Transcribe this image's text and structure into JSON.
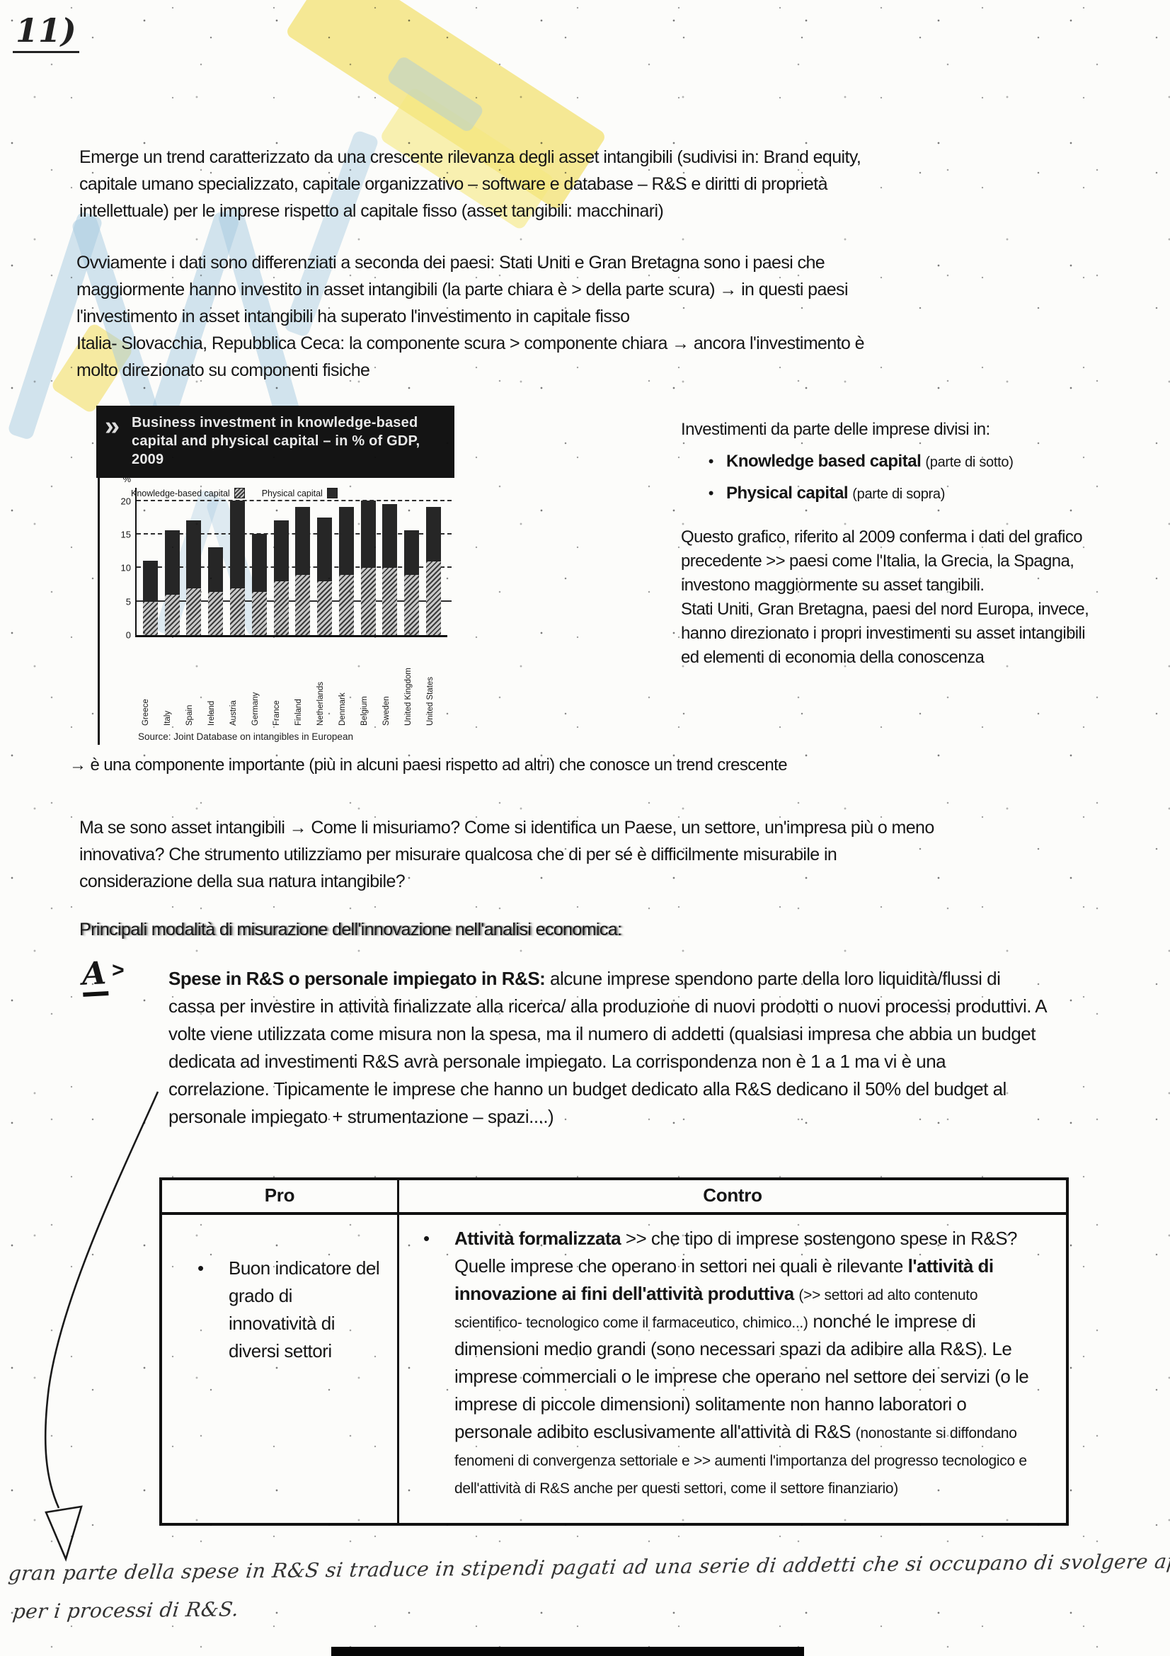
{
  "colors": {
    "watermark_blue": "#a6c9e0",
    "watermark_yellow": "#f3e172",
    "banner_bg": "#141414",
    "ink": "#161616"
  },
  "page": {
    "handwritten_page_number": "11)",
    "paragraphs": {
      "p1": "Emerge un trend caratterizzato da una crescente rilevanza degli asset intangibili (sudivisi in: Brand equity, capitale umano specializzato, capitale organizzativo – software e database – R&S e diritti di proprietà intellettuale) per le imprese rispetto al capitale fisso (asset tangibili: macchinari)",
      "p2a": "Ovviamente i dati sono differenziati a seconda dei paesi: Stati Uniti e Gran Bretagna sono i paesi che maggiormente hanno investito in asset intangibili (la parte chiara è > della parte scura) → in questi paesi l'investimento in asset intangibili ha superato l'investimento in capitale fisso",
      "p2b": "Italia- Slovacchia, Repubblica Ceca: la componente scura > componente chiara → ancora l'investimento è molto direzionato su componenti fisiche",
      "arrow_note": "→ è una componente importante (più in alcuni paesi rispetto ad altri) che conosce un trend crescente",
      "question": "Ma se sono asset intangibili → Come li misuriamo? Come si identifica un Paese, un settore, un'impresa più o meno innovativa? Che strumento utilizziamo per misurare qualcosa che di per sé è difficilmente misurabile in considerazione della sua natura intangibile?",
      "section_heading": "Principali modalità di misurazione dell'innovazione nell'analisi economica:"
    },
    "chart_note": {
      "heading": "Investimenti da parte delle imprese divisi in:",
      "bullet_glyph": "•",
      "bullets": [
        {
          "label": "Knowledge based capital",
          "suffix": "(parte di sotto)"
        },
        {
          "label": "Physical capital",
          "suffix": "(parte di sopra)"
        }
      ],
      "comment": "Questo grafico, riferito al 2009 conferma i dati del grafico precedente >> paesi come l'Italia, la Grecia, la Spagna, investono maggiormente su asset tangibili.\nStati Uniti, Gran Bretagna, paesi del nord Europa, invece, hanno direzionato i propri investimenti su asset intangibili ed elementi di economia della conoscenza"
    },
    "point_a": {
      "marker": "A",
      "marker_arrow": ">",
      "lead": "Spese in R&S o personale impiegato in R&S:",
      "body": " alcune imprese spendono parte della loro liquidità/flussi di cassa per investire in attività finalizzate alla ricerca/ alla produzione di nuovi prodotti o nuovi processi produttivi. A volte viene utilizzata come misura non la spesa, ma il numero di addetti (qualsiasi impresa che abbia un budget dedicata ad investimenti R&S avrà personale impiegato. La corrispondenza non è 1 a 1 ma vi è una correlazione. Tipicamente le imprese che hanno un budget dedicato alla R&S dedicano il 50% del budget al personale impiegato + strumentazione – spazi....)"
    },
    "table": {
      "header": [
        "Pro",
        "Contro"
      ],
      "bullet_glyph": "•",
      "pro_items": [
        "Buon indicatore del grado di innovatività di diversi settori"
      ],
      "contro": {
        "seg1_bold": "Attività formalizzata",
        "seg2": " >> che tipo di imprese sostengono spese in R&S? Quelle imprese che operano in settori nei quali è rilevante ",
        "seg3_bold": "l'attività di innovazione ai fini dell'attività produttiva ",
        "seg4_small": "(>> settori ad alto contenuto scientifico- tecnologico come il farmaceutico, chimico...)",
        "seg5": " nonché le imprese di dimensioni medio grandi (sono necessari spazi da adibire alla R&S). Le imprese commerciali o le imprese che operano nel settore dei servizi (o le imprese di piccole dimensioni) solitamente non hanno laboratori o personale adibito esclusivamente all'attività di R&S ",
        "seg6_small": "(nonostante si diffondano fenomeni di convergenza settoriale e >> aumenti l'importanza del progresso tecnologico e dell'attività di R&S anche per questi settori, come il settore finanziario)"
      }
    },
    "handwritten_note": {
      "line1": "gran parte della spese in R&S si traduce in stipendi pagati ad una serie di addetti che si occupano di svolgere appunto le attività",
      "line2": "per i processi di R&S."
    }
  },
  "chart_data": {
    "type": "bar",
    "stacked": true,
    "banner_prefix": "»",
    "title": "Business investment in knowledge-based capital and physical capital – in % of GDP, 2009",
    "legend": [
      "Knowledge-based capital",
      "Physical capital"
    ],
    "categories": [
      "Greece",
      "Italy",
      "Spain",
      "Ireland",
      "Austria",
      "Germany",
      "France",
      "Finland",
      "Netherlands",
      "Denmark",
      "Belgium",
      "Sweden",
      "United Kingdom",
      "United States"
    ],
    "series": [
      {
        "name": "Knowledge-based capital (bottom, hatched)",
        "values": [
          5,
          6,
          7,
          6.5,
          7,
          6.5,
          8,
          9,
          8,
          9,
          10,
          10,
          9,
          11
        ]
      },
      {
        "name": "Physical capital (top, dark)",
        "values": [
          6,
          9.5,
          10,
          6.5,
          13,
          8.5,
          9,
          10,
          9.5,
          10,
          10,
          9.5,
          6.5,
          8
        ]
      }
    ],
    "y_axis_unit": "%",
    "yticks": [
      0,
      5,
      10,
      15,
      20
    ],
    "ylim": [
      0,
      22
    ],
    "grid": "dashed horizontal",
    "legend_position": "top inside plot",
    "source": "Source: Joint Database on intangibles in European"
  }
}
